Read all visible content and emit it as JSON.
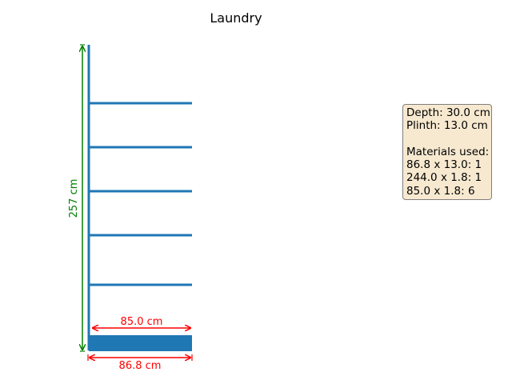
{
  "title": "Laundry",
  "dimensions": {
    "height_label": "257 cm",
    "inner_width_label": "85.0 cm",
    "outer_width_label": "86.8 cm"
  },
  "info": {
    "depth": "Depth: 30.0 cm",
    "plinth": "Plinth: 13.0 cm",
    "materials_heading": "Materials used:",
    "materials": [
      "86.8 x 13.0: 1",
      "244.0 x 1.8: 1",
      "85.0 x 1.8: 6"
    ]
  },
  "colors": {
    "structure": "#1f77b4",
    "width_dimension": "#ff0000",
    "height_dimension": "#008000",
    "info_background": "#f7e9d0",
    "info_border": "#7f7f7f"
  }
}
